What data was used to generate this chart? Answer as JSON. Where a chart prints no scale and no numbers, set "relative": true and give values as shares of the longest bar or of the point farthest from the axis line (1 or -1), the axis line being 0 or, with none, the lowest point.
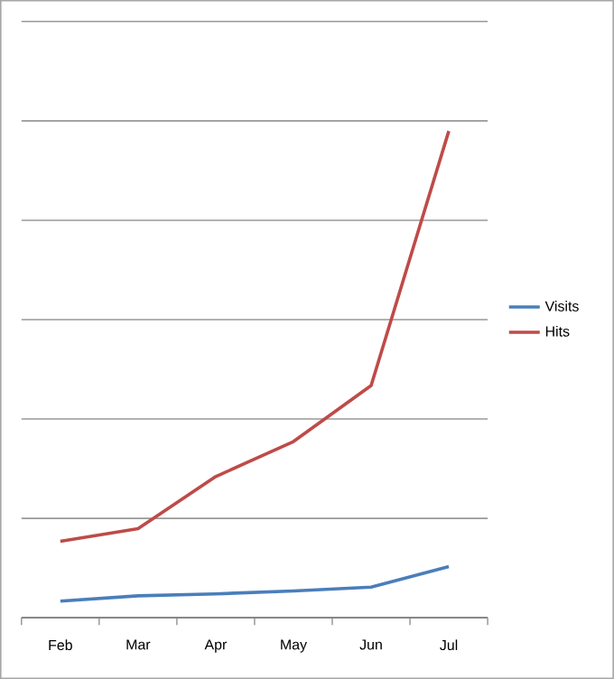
{
  "chart_data": {
    "type": "line",
    "relative": true,
    "categories": [
      "Feb",
      "Mar",
      "Apr",
      "May",
      "Jun",
      "Jul"
    ],
    "series": [
      {
        "name": "Visits",
        "color": "#4a7ebb",
        "values": [
          0.034,
          0.045,
          0.049,
          0.055,
          0.063,
          0.105
        ]
      },
      {
        "name": "Hits",
        "color": "#be4b48",
        "values": [
          0.157,
          0.183,
          0.29,
          0.362,
          0.477,
          1
        ]
      }
    ],
    "grid": "y",
    "legend": "right",
    "marker": "none",
    "line_style": "solid"
  }
}
